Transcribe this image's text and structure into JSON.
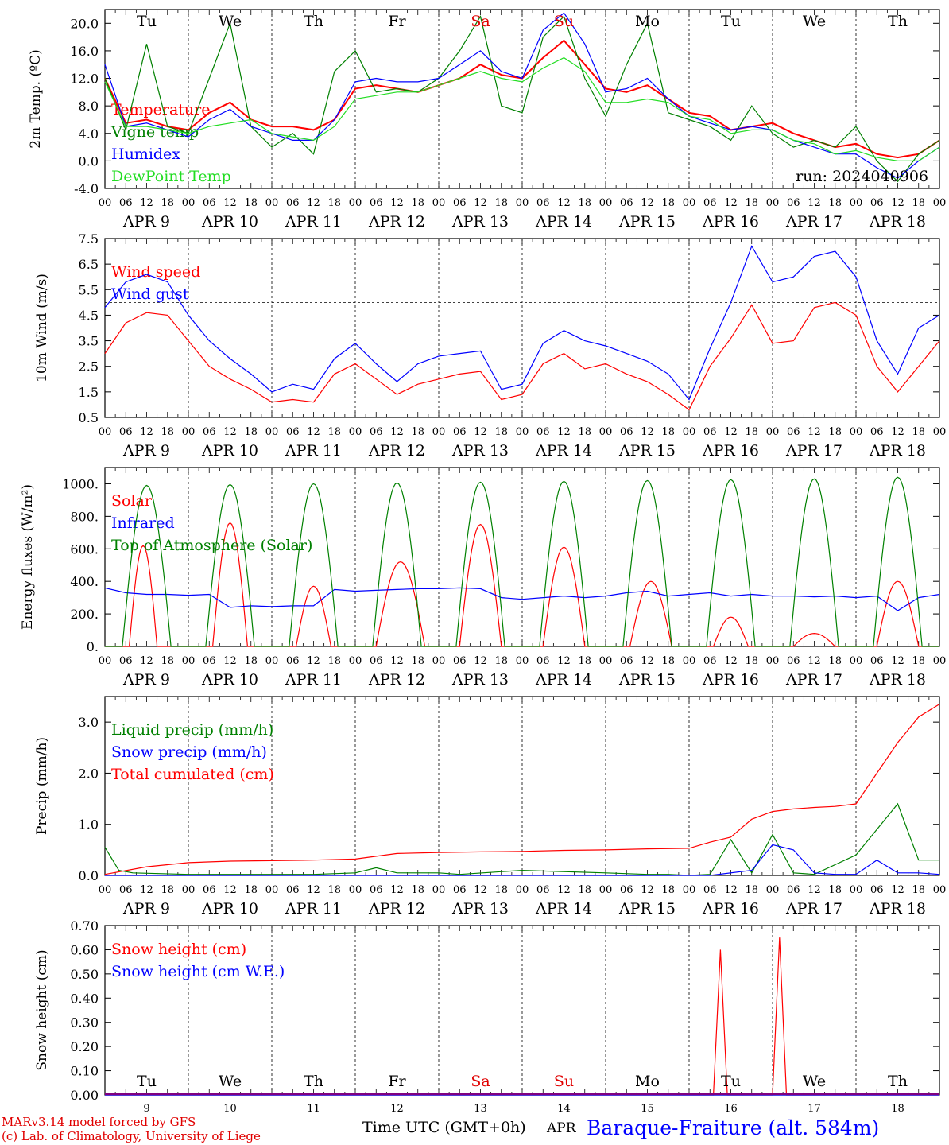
{
  "days": [
    "Tu",
    "We",
    "Th",
    "Fr",
    "Sa",
    "Su",
    "Mo",
    "Tu",
    "We",
    "Th"
  ],
  "day_colors": [
    "#000",
    "#000",
    "#000",
    "#000",
    "#e00000",
    "#e00000",
    "#000",
    "#000",
    "#000",
    "#000"
  ],
  "date_labels": [
    "APR  9",
    "APR 10",
    "APR 11",
    "APR 12",
    "APR 13",
    "APR 14",
    "APR 15",
    "APR 16",
    "APR 17",
    "APR 18"
  ],
  "day_numbers": [
    "9",
    "10",
    "11",
    "12",
    "13",
    "14",
    "15",
    "16",
    "17",
    "18"
  ],
  "hour_labels": [
    "00",
    "06",
    "12",
    "18"
  ],
  "footer": {
    "model": "MARv3.14 model forced by GFS",
    "credit": "(c) Lab. of Climatology, University of Liege",
    "axis_title": "Time UTC (GMT+0h)",
    "month": "APR",
    "station": "Baraque-Fraiture (alt. 584m)"
  },
  "panels": {
    "temp": {
      "ylabel": "2m Temp. (ºC)",
      "run": "run: 2024040906"
    },
    "wind": {
      "ylabel": "10m Wind (m/s)"
    },
    "energy": {
      "ylabel": "Energy fluxes (W/m²)"
    },
    "precip": {
      "ylabel": "Precip (mm/h)"
    },
    "snow": {
      "ylabel": "Snow height (cm)"
    }
  },
  "chart_data": [
    {
      "type": "line",
      "id": "temp",
      "ylabel": "2m Temp. (ºC)",
      "ylim": [
        -4,
        22
      ],
      "yticks": [
        "20.0",
        "16.0",
        "12.0",
        "8.0",
        "4.0",
        "0.0",
        "-4.0"
      ],
      "ytick_values": [
        20,
        16,
        12,
        8,
        4,
        0,
        -4
      ],
      "reference_line": 0,
      "x_unit": "hours since APR 9 00 UTC",
      "series": [
        {
          "name": "Temperature",
          "color": "#ff0000",
          "x": [
            0,
            6,
            12,
            18,
            24,
            30,
            36,
            42,
            48,
            54,
            60,
            66,
            72,
            78,
            84,
            90,
            96,
            102,
            108,
            114,
            120,
            126,
            132,
            138,
            144,
            150,
            156,
            162,
            168,
            174,
            180,
            186,
            192,
            198,
            204,
            210,
            216,
            222,
            228,
            234,
            240
          ],
          "values": [
            12,
            5.5,
            6,
            5,
            4.5,
            7,
            8.5,
            6,
            5,
            5,
            4.5,
            6,
            10.5,
            11,
            10.5,
            10,
            11,
            12,
            14,
            12.5,
            12,
            15,
            17.5,
            14,
            10.5,
            10,
            11,
            9,
            7,
            6.5,
            4.5,
            5,
            5.5,
            4,
            3,
            2,
            2.5,
            1,
            0.5,
            1,
            3
          ]
        },
        {
          "name": "Vigne temp",
          "color": "#008000",
          "x": [
            0,
            6,
            12,
            18,
            24,
            30,
            36,
            42,
            48,
            54,
            60,
            66,
            72,
            78,
            84,
            90,
            96,
            102,
            108,
            114,
            120,
            126,
            132,
            138,
            144,
            150,
            156,
            162,
            168,
            174,
            180,
            186,
            192,
            198,
            204,
            210,
            216,
            222,
            228,
            234,
            240
          ],
          "values": [
            12,
            4.5,
            17,
            5,
            4,
            12,
            20,
            5,
            2,
            4,
            1,
            13,
            16,
            10,
            10.5,
            10,
            12,
            16,
            21,
            8,
            7,
            18,
            21,
            12,
            6.5,
            14,
            20,
            7,
            6,
            5,
            3,
            8,
            4,
            2,
            3,
            2,
            5,
            0,
            -3,
            1,
            3
          ]
        },
        {
          "name": "Humidex",
          "color": "#0000ff",
          "x": [
            0,
            6,
            12,
            18,
            24,
            30,
            36,
            42,
            48,
            54,
            60,
            66,
            72,
            78,
            84,
            90,
            96,
            102,
            108,
            114,
            120,
            126,
            132,
            138,
            144,
            150,
            156,
            162,
            168,
            174,
            180,
            186,
            192,
            198,
            204,
            210,
            216,
            222,
            228,
            234,
            240
          ],
          "values": [
            14,
            5,
            5.5,
            4.5,
            3.5,
            6,
            7.5,
            5,
            4,
            3,
            3,
            6,
            11.5,
            12,
            11.5,
            11.5,
            12,
            14,
            16,
            13,
            12,
            19,
            21.5,
            17,
            10,
            10.5,
            12,
            9,
            6.5,
            5.5,
            4.5,
            5,
            4.5,
            3,
            2,
            1,
            1,
            -1,
            -2.5,
            0,
            2
          ]
        },
        {
          "name": "DewPoint Temp",
          "color": "#22dd22",
          "x": [
            0,
            6,
            12,
            18,
            24,
            30,
            36,
            42,
            48,
            54,
            60,
            66,
            72,
            78,
            84,
            90,
            96,
            102,
            108,
            114,
            120,
            126,
            132,
            138,
            144,
            150,
            156,
            162,
            168,
            174,
            180,
            186,
            192,
            198,
            204,
            210,
            216,
            222,
            228,
            234,
            240
          ],
          "values": [
            11.5,
            5,
            5,
            4.5,
            4,
            5,
            5.5,
            6,
            4,
            3.5,
            3,
            5,
            9,
            9.5,
            10,
            10,
            11,
            12,
            13,
            12,
            11.5,
            13.5,
            15,
            13,
            8.5,
            8.5,
            9,
            8.5,
            6.5,
            6,
            4,
            4.5,
            4.5,
            3,
            2.5,
            1,
            1.5,
            0.5,
            0,
            0,
            2
          ]
        }
      ]
    },
    {
      "type": "line",
      "id": "wind",
      "ylabel": "10m Wind (m/s)",
      "ylim": [
        0.5,
        7.5
      ],
      "yticks": [
        "7.5",
        "6.5",
        "5.5",
        "4.5",
        "3.5",
        "2.5",
        "1.5",
        "0.5"
      ],
      "ytick_values": [
        7.5,
        6.5,
        5.5,
        4.5,
        3.5,
        2.5,
        1.5,
        0.5
      ],
      "reference_line": 5,
      "series": [
        {
          "name": "Wind speed",
          "color": "#ff0000",
          "x": [
            0,
            6,
            12,
            18,
            24,
            30,
            36,
            42,
            48,
            54,
            60,
            66,
            72,
            78,
            84,
            90,
            96,
            102,
            108,
            114,
            120,
            126,
            132,
            138,
            144,
            150,
            156,
            162,
            168,
            174,
            180,
            186,
            192,
            198,
            204,
            210,
            216,
            222,
            228,
            234,
            240
          ],
          "values": [
            3,
            4.2,
            4.6,
            4.5,
            3.5,
            2.5,
            2,
            1.6,
            1.1,
            1.2,
            1.1,
            2.2,
            2.6,
            2,
            1.4,
            1.8,
            2,
            2.2,
            2.3,
            1.2,
            1.4,
            2.6,
            3,
            2.4,
            2.6,
            2.2,
            1.9,
            1.4,
            0.8,
            2.5,
            3.6,
            4.9,
            3.4,
            3.5,
            4.8,
            5,
            4.5,
            2.5,
            1.5,
            2.5,
            3.5
          ]
        },
        {
          "name": "Wind gust",
          "color": "#0000ff",
          "x": [
            0,
            6,
            12,
            18,
            24,
            30,
            36,
            42,
            48,
            54,
            60,
            66,
            72,
            78,
            84,
            90,
            96,
            102,
            108,
            114,
            120,
            126,
            132,
            138,
            144,
            150,
            156,
            162,
            168,
            174,
            180,
            186,
            192,
            198,
            204,
            210,
            216,
            222,
            228,
            234,
            240
          ],
          "values": [
            4.8,
            5.8,
            6.1,
            5.8,
            4.5,
            3.5,
            2.8,
            2.2,
            1.5,
            1.8,
            1.6,
            2.8,
            3.4,
            2.6,
            1.9,
            2.6,
            2.9,
            3,
            3.1,
            1.6,
            1.8,
            3.4,
            3.9,
            3.5,
            3.3,
            3,
            2.7,
            2.2,
            1.2,
            3.2,
            5,
            7.2,
            5.8,
            6,
            6.8,
            7,
            6,
            3.5,
            2.2,
            4,
            4.5
          ]
        }
      ]
    },
    {
      "type": "line",
      "id": "energy",
      "ylabel": "Energy fluxes (W/m²)",
      "ylim": [
        0,
        1100
      ],
      "yticks": [
        "1000.",
        "800.",
        "600.",
        "400.",
        "200.",
        "0."
      ],
      "ytick_values": [
        1000,
        800,
        600,
        400,
        200,
        0
      ],
      "series": [
        {
          "name": "Solar",
          "color": "#ff0000",
          "peaks": [
            [
              11,
              620,
              4
            ],
            [
              12,
              760,
              5
            ],
            [
              12,
              370,
              5
            ],
            [
              13,
              520,
              7
            ],
            [
              12,
              750,
              6
            ],
            [
              12,
              610,
              6
            ],
            [
              13,
              400,
              6
            ],
            [
              12,
              180,
              5
            ],
            [
              12,
              80,
              6
            ],
            [
              12,
              400,
              6
            ]
          ]
        },
        {
          "name": "Infrared",
          "color": "#0000ff",
          "x": [
            0,
            6,
            12,
            18,
            24,
            30,
            36,
            42,
            48,
            54,
            60,
            66,
            72,
            78,
            84,
            90,
            96,
            102,
            108,
            114,
            120,
            126,
            132,
            138,
            144,
            150,
            156,
            162,
            168,
            174,
            180,
            186,
            192,
            198,
            204,
            210,
            216,
            222,
            228,
            234,
            240
          ],
          "values": [
            360,
            330,
            320,
            320,
            315,
            320,
            240,
            250,
            245,
            250,
            250,
            350,
            340,
            345,
            350,
            355,
            355,
            360,
            355,
            300,
            290,
            300,
            310,
            300,
            310,
            330,
            340,
            310,
            320,
            330,
            310,
            320,
            310,
            310,
            305,
            310,
            300,
            310,
            220,
            300,
            320
          ]
        },
        {
          "name": "Top of Atmosphere (Solar)",
          "color": "#008000",
          "peaks": [
            [
              12,
              990,
              7
            ],
            [
              12,
              995,
              7
            ],
            [
              12,
              1000,
              7
            ],
            [
              12,
              1005,
              7
            ],
            [
              12,
              1010,
              7
            ],
            [
              12,
              1015,
              7
            ],
            [
              12,
              1020,
              7
            ],
            [
              12,
              1025,
              7
            ],
            [
              12,
              1030,
              7
            ],
            [
              12,
              1040,
              7
            ]
          ]
        }
      ]
    },
    {
      "type": "line",
      "id": "precip",
      "ylabel": "Precip (mm/h)",
      "ylim": [
        0,
        3.5
      ],
      "yticks": [
        "3.0",
        "2.0",
        "1.0",
        "0.0"
      ],
      "ytick_values": [
        3,
        2,
        1,
        0
      ],
      "series": [
        {
          "name": "Liquid precip (mm/h)",
          "color": "#008000",
          "x": [
            0,
            4,
            8,
            24,
            60,
            72,
            78,
            84,
            96,
            102,
            120,
            144,
            156,
            162,
            168,
            174,
            180,
            186,
            192,
            198,
            204,
            216,
            222,
            228,
            234,
            240
          ],
          "values": [
            0.55,
            0.1,
            0.05,
            0.02,
            0.02,
            0.05,
            0.15,
            0.05,
            0.05,
            0.02,
            0.1,
            0.05,
            0.02,
            0.02,
            0.0,
            0.02,
            0.7,
            0.05,
            0.8,
            0.05,
            0.02,
            0.4,
            0.9,
            1.4,
            0.3,
            0.3
          ]
        },
        {
          "name": "Snow precip (mm/h)",
          "color": "#0000ff",
          "x": [
            0,
            24,
            120,
            174,
            186,
            192,
            198,
            204,
            210,
            216,
            222,
            228,
            234,
            240
          ],
          "values": [
            0,
            0,
            0,
            0,
            0.1,
            0.6,
            0.5,
            0.05,
            0.02,
            0.02,
            0.3,
            0.05,
            0.05,
            0.02
          ]
        },
        {
          "name": "Total cumulated (cm)",
          "color": "#ff0000",
          "x": [
            0,
            12,
            24,
            36,
            48,
            60,
            72,
            84,
            96,
            108,
            120,
            132,
            144,
            156,
            168,
            174,
            180,
            186,
            192,
            198,
            204,
            210,
            216,
            222,
            228,
            234,
            240
          ],
          "values": [
            0.02,
            0.17,
            0.25,
            0.28,
            0.29,
            0.3,
            0.32,
            0.43,
            0.45,
            0.46,
            0.47,
            0.49,
            0.5,
            0.52,
            0.53,
            0.65,
            0.75,
            1.1,
            1.25,
            1.3,
            1.33,
            1.35,
            1.4,
            2.0,
            2.6,
            3.1,
            3.35
          ]
        }
      ]
    },
    {
      "type": "line",
      "id": "snow",
      "ylabel": "Snow height (cm)",
      "ylim": [
        0,
        0.7
      ],
      "yticks": [
        "0.70",
        "0.60",
        "0.50",
        "0.40",
        "0.30",
        "0.20",
        "0.10",
        "0.00"
      ],
      "ytick_values": [
        0.7,
        0.6,
        0.5,
        0.4,
        0.3,
        0.2,
        0.1,
        0
      ],
      "series": [
        {
          "name": "Snow height (cm)",
          "color": "#ff0000",
          "x": [
            0,
            172,
            175,
            177,
            179,
            192,
            194,
            196,
            198,
            240
          ],
          "values": [
            0,
            0,
            0,
            0.6,
            0,
            0,
            0.65,
            0,
            0,
            0
          ]
        },
        {
          "name": "Snow height (cm W.E.)",
          "color": "#0000ff",
          "x": [
            0,
            240
          ],
          "values": [
            0,
            0
          ]
        }
      ]
    }
  ]
}
